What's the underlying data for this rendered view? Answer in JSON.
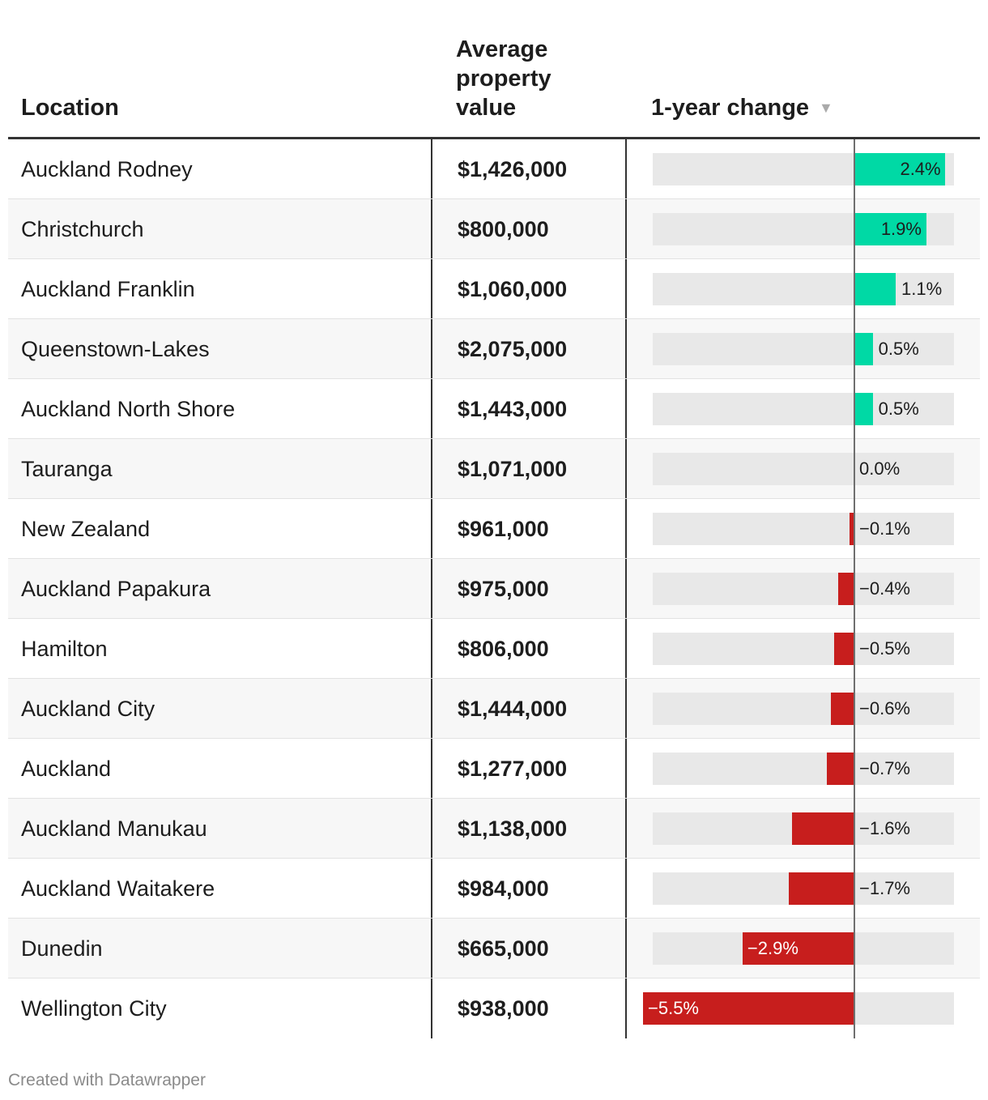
{
  "table": {
    "headers": {
      "location": "Location",
      "value_lines": [
        "Average",
        "property",
        "value"
      ],
      "change": "1-year change",
      "sort_indicator": "▼"
    }
  },
  "chart_data": {
    "type": "table",
    "title": "",
    "columns": [
      "Location",
      "Average property value",
      "1-year change"
    ],
    "unit_change": "%",
    "axis_range": [
      -5.5,
      2.4
    ],
    "rows": [
      {
        "location": "Auckland Rodney",
        "value": "$1,426,000",
        "change": 2.4,
        "change_label": "2.4%"
      },
      {
        "location": "Christchurch",
        "value": "$800,000",
        "change": 1.9,
        "change_label": "1.9%"
      },
      {
        "location": "Auckland Franklin",
        "value": "$1,060,000",
        "change": 1.1,
        "change_label": "1.1%"
      },
      {
        "location": "Queenstown-Lakes",
        "value": "$2,075,000",
        "change": 0.5,
        "change_label": "0.5%"
      },
      {
        "location": "Auckland North Shore",
        "value": "$1,443,000",
        "change": 0.5,
        "change_label": "0.5%"
      },
      {
        "location": "Tauranga",
        "value": "$1,071,000",
        "change": 0.0,
        "change_label": "0.0%"
      },
      {
        "location": "New Zealand",
        "value": "$961,000",
        "change": -0.1,
        "change_label": "−0.1%"
      },
      {
        "location": "Auckland Papakura",
        "value": "$975,000",
        "change": -0.4,
        "change_label": "−0.4%"
      },
      {
        "location": "Hamilton",
        "value": "$806,000",
        "change": -0.5,
        "change_label": "−0.5%"
      },
      {
        "location": "Auckland City",
        "value": "$1,444,000",
        "change": -0.6,
        "change_label": "−0.6%"
      },
      {
        "location": "Auckland",
        "value": "$1,277,000",
        "change": -0.7,
        "change_label": "−0.7%"
      },
      {
        "location": "Auckland Manukau",
        "value": "$1,138,000",
        "change": -1.6,
        "change_label": "−1.6%"
      },
      {
        "location": "Auckland Waitakere",
        "value": "$984,000",
        "change": -1.7,
        "change_label": "−1.7%"
      },
      {
        "location": "Dunedin",
        "value": "$665,000",
        "change": -2.9,
        "change_label": "−2.9%"
      },
      {
        "location": "Wellington City",
        "value": "$938,000",
        "change": -5.5,
        "change_label": "−5.5%"
      }
    ],
    "colors": {
      "positive": "#00d9a5",
      "negative": "#c71e1d",
      "track": "#e8e8e8"
    }
  },
  "footer": {
    "credit": "Created with Datawrapper"
  }
}
